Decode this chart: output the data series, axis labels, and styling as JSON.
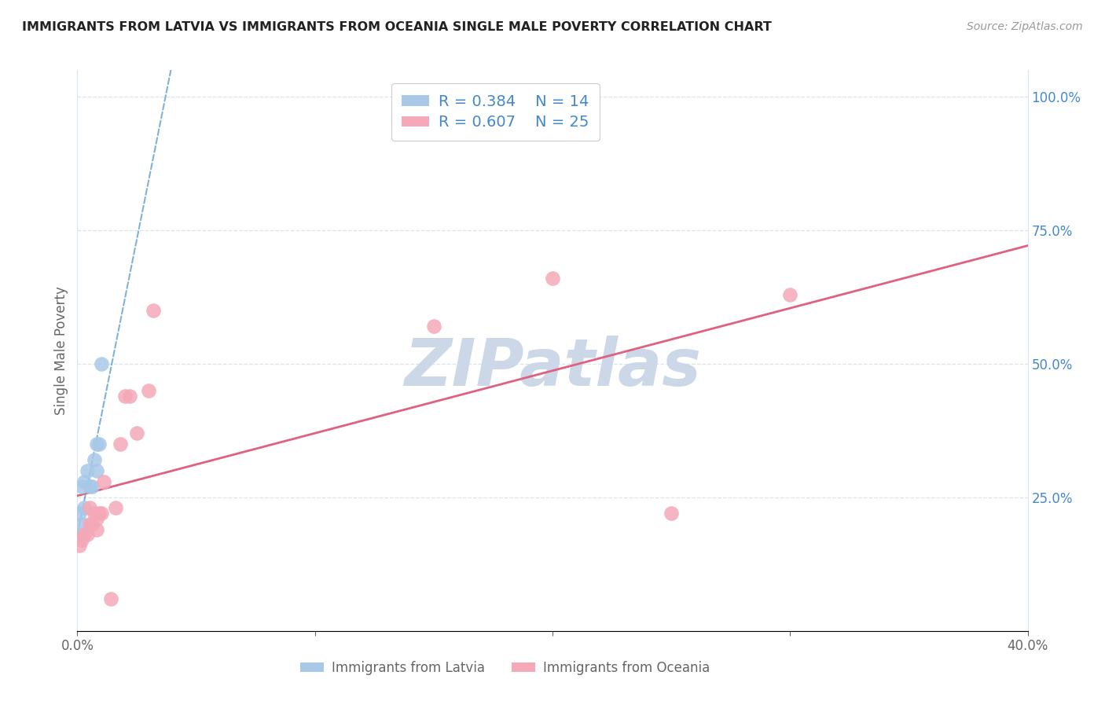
{
  "title": "IMMIGRANTS FROM LATVIA VS IMMIGRANTS FROM OCEANIA SINGLE MALE POVERTY CORRELATION CHART",
  "source": "Source: ZipAtlas.com",
  "ylabel": "Single Male Poverty",
  "legend_label1": "Immigrants from Latvia",
  "legend_label2": "Immigrants from Oceania",
  "R1": 0.384,
  "N1": 14,
  "R2": 0.607,
  "N2": 25,
  "xlim": [
    0.0,
    0.4
  ],
  "ylim": [
    0.0,
    1.05
  ],
  "color1": "#a8c8e8",
  "color2": "#f4a8b8",
  "line1_color": "#5599cc",
  "line2_color": "#e06080",
  "grid_color": "#d8e4ee",
  "latvia_x": [
    0.001,
    0.001,
    0.002,
    0.002,
    0.003,
    0.003,
    0.004,
    0.005,
    0.006,
    0.007,
    0.008,
    0.008,
    0.009,
    0.01
  ],
  "latvia_y": [
    0.18,
    0.22,
    0.2,
    0.27,
    0.23,
    0.28,
    0.3,
    0.27,
    0.27,
    0.32,
    0.3,
    0.35,
    0.35,
    0.5
  ],
  "oceania_x": [
    0.001,
    0.002,
    0.003,
    0.004,
    0.005,
    0.005,
    0.006,
    0.007,
    0.008,
    0.008,
    0.009,
    0.01,
    0.011,
    0.014,
    0.016,
    0.018,
    0.02,
    0.022,
    0.025,
    0.03,
    0.032,
    0.15,
    0.2,
    0.25,
    0.3
  ],
  "oceania_y": [
    0.16,
    0.17,
    0.18,
    0.18,
    0.2,
    0.23,
    0.2,
    0.22,
    0.19,
    0.21,
    0.22,
    0.22,
    0.28,
    0.06,
    0.23,
    0.35,
    0.44,
    0.44,
    0.37,
    0.45,
    0.6,
    0.57,
    0.66,
    0.22,
    0.63
  ],
  "oceania_outlier_x": [
    0.2
  ],
  "oceania_outlier_y": [
    0.66
  ],
  "background_color": "#ffffff",
  "title_color": "#222222",
  "axis_label_color": "#666666",
  "right_axis_color": "#4488cc",
  "watermark_text": "ZIPatlas",
  "watermark_color": "#ccd8e8"
}
